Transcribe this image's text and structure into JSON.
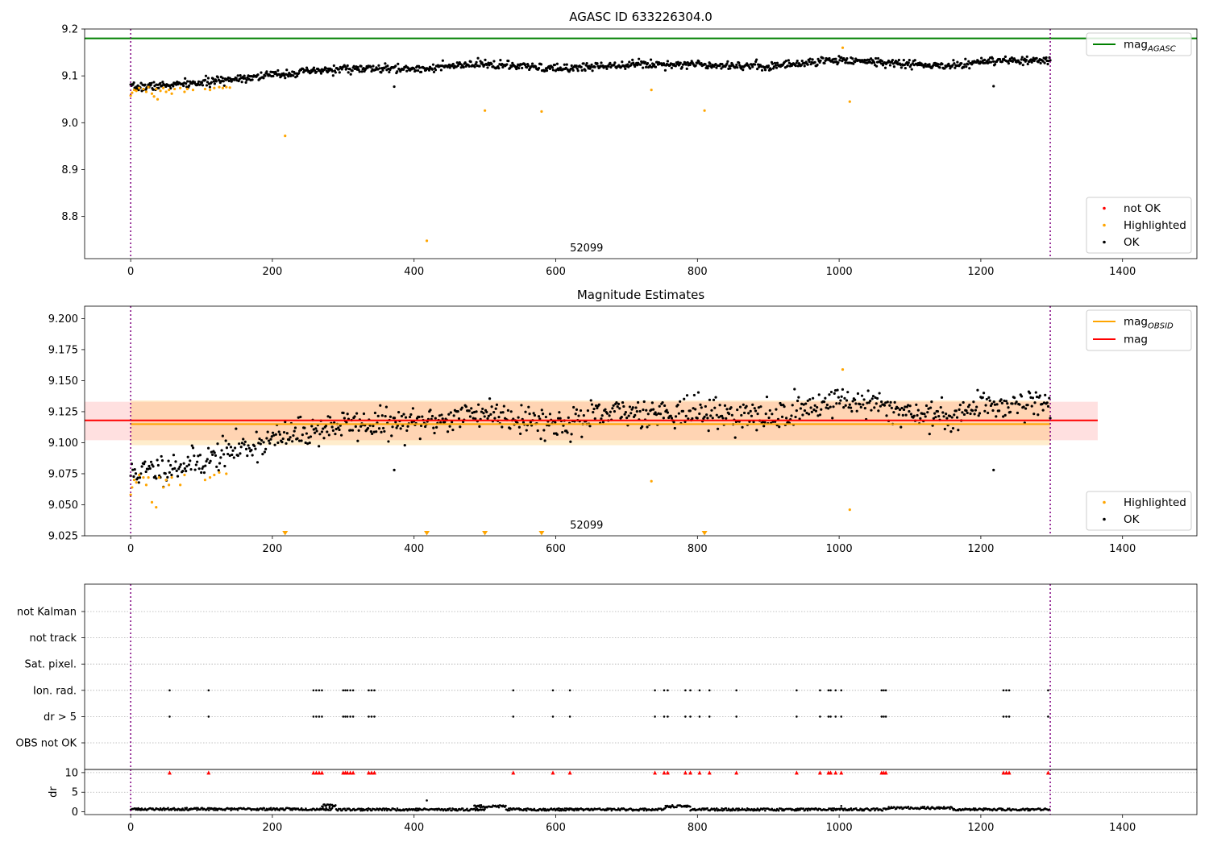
{
  "chart_data": [
    {
      "type": "scatter",
      "title": "AGASC ID 633226304.0",
      "xlabel": "",
      "ylabel": "",
      "xlim": [
        -65,
        1505
      ],
      "ylim": [
        8.71,
        9.2
      ],
      "x_ticks": [
        0,
        200,
        400,
        600,
        800,
        1000,
        1200,
        1400
      ],
      "y_ticks": [
        8.8,
        8.9,
        9.0,
        9.1,
        9.2
      ],
      "y_tick_labels": [
        "8.8",
        "8.9",
        "9.0",
        "9.1",
        "9.2"
      ],
      "obsid_label": "52099",
      "obsid_label_x": 620,
      "obs_boundaries": [
        0,
        1298
      ],
      "reference_lines": [
        {
          "name": "mag",
          "subscript": "AGASC",
          "value": 9.18,
          "color": "#008000"
        }
      ],
      "legends": [
        {
          "placement": "top-right",
          "entries": [
            {
              "kind": "line",
              "label": "mag",
              "subscript": "AGASC",
              "color": "#008000"
            }
          ]
        },
        {
          "placement": "bottom-right",
          "entries": [
            {
              "kind": "dot",
              "label": "not OK",
              "color": "#ff0000"
            },
            {
              "kind": "dot",
              "label": "Highlighted",
              "color": "#ffa500"
            },
            {
              "kind": "dot",
              "label": "OK",
              "color": "#000000"
            }
          ]
        }
      ],
      "series": [
        {
          "name": "OK",
          "color": "#000000",
          "trend": [
            [
              0,
              9.075
            ],
            [
              50,
              9.08
            ],
            [
              100,
              9.085
            ],
            [
              150,
              9.095
            ],
            [
              220,
              9.105
            ],
            [
              300,
              9.115
            ],
            [
              400,
              9.115
            ],
            [
              500,
              9.125
            ],
            [
              600,
              9.115
            ],
            [
              700,
              9.125
            ],
            [
              800,
              9.125
            ],
            [
              900,
              9.12
            ],
            [
              1000,
              9.135
            ],
            [
              1050,
              9.13
            ],
            [
              1150,
              9.12
            ],
            [
              1200,
              9.13
            ],
            [
              1298,
              9.133
            ]
          ],
          "scatter": 0.008,
          "count": 1150,
          "outliers": [
            [
              372,
              9.077
            ],
            [
              1218,
              9.078
            ]
          ]
        },
        {
          "name": "Highlighted",
          "color": "#ffa500",
          "points": [
            [
              0,
              9.058
            ],
            [
              2,
              9.064
            ],
            [
              5,
              9.07
            ],
            [
              8,
              9.068
            ],
            [
              12,
              9.074
            ],
            [
              18,
              9.072
            ],
            [
              22,
              9.066
            ],
            [
              25,
              9.076
            ],
            [
              30,
              9.062
            ],
            [
              33,
              9.056
            ],
            [
              36,
              9.072
            ],
            [
              38,
              9.05
            ],
            [
              42,
              9.068
            ],
            [
              46,
              9.074
            ],
            [
              50,
              9.066
            ],
            [
              54,
              9.07
            ],
            [
              58,
              9.062
            ],
            [
              62,
              9.072
            ],
            [
              70,
              9.074
            ],
            [
              76,
              9.066
            ],
            [
              80,
              9.072
            ],
            [
              88,
              9.07
            ],
            [
              105,
              9.072
            ],
            [
              112,
              9.07
            ],
            [
              118,
              9.074
            ],
            [
              125,
              9.076
            ],
            [
              130,
              9.074
            ],
            [
              135,
              9.076
            ],
            [
              140,
              9.075
            ],
            [
              218,
              8.972
            ],
            [
              418,
              8.748
            ],
            [
              500,
              9.026
            ],
            [
              580,
              9.024
            ],
            [
              735,
              9.07
            ],
            [
              810,
              9.026
            ],
            [
              1005,
              9.16
            ],
            [
              1015,
              9.045
            ]
          ]
        }
      ]
    },
    {
      "type": "scatter",
      "title": "Magnitude Estimates",
      "xlabel": "",
      "ylabel": "",
      "xlim": [
        -65,
        1505
      ],
      "ylim": [
        9.025,
        9.21
      ],
      "x_ticks": [
        0,
        200,
        400,
        600,
        800,
        1000,
        1200,
        1400
      ],
      "y_ticks": [
        9.025,
        9.05,
        9.075,
        9.1,
        9.125,
        9.15,
        9.175,
        9.2
      ],
      "y_tick_labels": [
        "9.025",
        "9.050",
        "9.075",
        "9.100",
        "9.125",
        "9.150",
        "9.175",
        "9.200"
      ],
      "obsid_label": "52099",
      "obsid_label_x": 620,
      "obs_boundaries": [
        0,
        1298
      ],
      "bands": [
        {
          "name": "mag",
          "color": "#ff0000",
          "opacity": 0.12,
          "x_range": [
            -65,
            1365
          ],
          "y_range": [
            9.102,
            9.133
          ]
        },
        {
          "name": "mag_OBSID",
          "color": "#ffa500",
          "opacity": 0.2,
          "x_range": [
            0,
            1298
          ],
          "y_range": [
            9.098,
            9.134
          ]
        }
      ],
      "reference_lines": [
        {
          "name": "mag",
          "subscript": "OBSID",
          "value": 9.115,
          "color": "#ffa500",
          "x_range": [
            0,
            1298
          ]
        },
        {
          "name": "mag",
          "subscript": "",
          "value": 9.118,
          "color": "#ff0000",
          "x_range": [
            -65,
            1365
          ]
        }
      ],
      "legends": [
        {
          "placement": "top-right",
          "entries": [
            {
              "kind": "line",
              "label": "mag",
              "subscript": "OBSID",
              "color": "#ffa500"
            },
            {
              "kind": "line",
              "label": "mag",
              "subscript": "",
              "color": "#ff0000"
            }
          ]
        },
        {
          "placement": "bottom-right",
          "entries": [
            {
              "kind": "dot",
              "label": "Highlighted",
              "color": "#ffa500"
            },
            {
              "kind": "dot",
              "label": "OK",
              "color": "#000000"
            }
          ]
        }
      ],
      "series": [
        {
          "name": "OK",
          "color": "#000000",
          "trend": [
            [
              0,
              9.075
            ],
            [
              50,
              9.08
            ],
            [
              100,
              9.085
            ],
            [
              150,
              9.095
            ],
            [
              220,
              9.105
            ],
            [
              300,
              9.115
            ],
            [
              400,
              9.115
            ],
            [
              500,
              9.125
            ],
            [
              600,
              9.115
            ],
            [
              700,
              9.125
            ],
            [
              800,
              9.125
            ],
            [
              900,
              9.12
            ],
            [
              1000,
              9.135
            ],
            [
              1050,
              9.13
            ],
            [
              1150,
              9.12
            ],
            [
              1200,
              9.13
            ],
            [
              1298,
              9.133
            ]
          ],
          "scatter": 0.011,
          "count": 900,
          "outliers": [
            [
              372,
              9.078
            ],
            [
              1218,
              9.078
            ]
          ]
        },
        {
          "name": "Highlighted",
          "color": "#ffa500",
          "points": [
            [
              0,
              9.058
            ],
            [
              2,
              9.064
            ],
            [
              5,
              9.07
            ],
            [
              8,
              9.068
            ],
            [
              12,
              9.074
            ],
            [
              18,
              9.072
            ],
            [
              22,
              9.066
            ],
            [
              25,
              9.072
            ],
            [
              30,
              9.052
            ],
            [
              36,
              9.048
            ],
            [
              40,
              9.072
            ],
            [
              46,
              9.064
            ],
            [
              50,
              9.07
            ],
            [
              54,
              9.066
            ],
            [
              58,
              9.072
            ],
            [
              70,
              9.066
            ],
            [
              76,
              9.074
            ],
            [
              105,
              9.07
            ],
            [
              112,
              9.072
            ],
            [
              118,
              9.074
            ],
            [
              125,
              9.076
            ],
            [
              135,
              9.075
            ],
            [
              735,
              9.069
            ],
            [
              1005,
              9.159
            ],
            [
              1015,
              9.046
            ]
          ]
        },
        {
          "name": "Highlighted below range",
          "color": "#ffa500",
          "marker": "triangle-down",
          "points": [
            [
              218,
              9.025
            ],
            [
              418,
              9.025
            ],
            [
              500,
              9.025
            ],
            [
              580,
              9.025
            ],
            [
              810,
              9.025
            ]
          ]
        }
      ]
    },
    {
      "type": "scatter",
      "title": "",
      "xlabel": "",
      "ylabel": "",
      "xlim": [
        -65,
        1505
      ],
      "categories": [
        "not Kalman",
        "not track",
        "Sat. pixel.",
        "Ion. rad.",
        "dr > 5",
        "OBS not OK"
      ],
      "obs_boundaries": [
        0,
        1298
      ],
      "flag_events": [
        55,
        110,
        258,
        262,
        266,
        270,
        300,
        303,
        306,
        310,
        314,
        336,
        340,
        344,
        540,
        596,
        620,
        740,
        753,
        758,
        783,
        790,
        803,
        817,
        855,
        940,
        973,
        985,
        988,
        995,
        1003,
        1060,
        1063,
        1066,
        1232,
        1236,
        1240,
        1295
      ],
      "flags_set": {
        "not Kalman": false,
        "not track": false,
        "Sat. pixel.": false,
        "Ion. rad.": true,
        "dr > 5": true,
        "OBS not OK": false
      }
    },
    {
      "type": "line",
      "title": "",
      "xlabel": "",
      "ylabel": "dr",
      "xlim": [
        -65,
        1505
      ],
      "ylim": [
        -0.7,
        10.8
      ],
      "y_ticks": [
        0,
        5,
        10
      ],
      "y_tick_labels": [
        "0",
        "5",
        "10"
      ],
      "x_ticks": [
        0,
        200,
        400,
        600,
        800,
        1000,
        1200,
        1400
      ],
      "obs_boundaries": [
        0,
        1298
      ],
      "cap_value": 10,
      "cap_color": "#ff0000",
      "segments": [
        {
          "x": [
            0,
            285
          ],
          "dr": 0.7
        },
        {
          "x": [
            270,
            290
          ],
          "dr": 1.6
        },
        {
          "x": [
            290,
            500
          ],
          "dr": 0.6
        },
        {
          "x": [
            485,
            530
          ],
          "dr": 1.4
        },
        {
          "x": [
            530,
            755
          ],
          "dr": 0.6
        },
        {
          "x": [
            755,
            790
          ],
          "dr": 1.4
        },
        {
          "x": [
            790,
            1070
          ],
          "dr": 0.6
        },
        {
          "x": [
            1070,
            1160
          ],
          "dr": 1.0
        },
        {
          "x": [
            1160,
            1298
          ],
          "dr": 0.6
        }
      ],
      "dr_outliers": [
        [
          418,
          2.9
        ],
        [
          1003,
          1.5
        ]
      ]
    }
  ]
}
